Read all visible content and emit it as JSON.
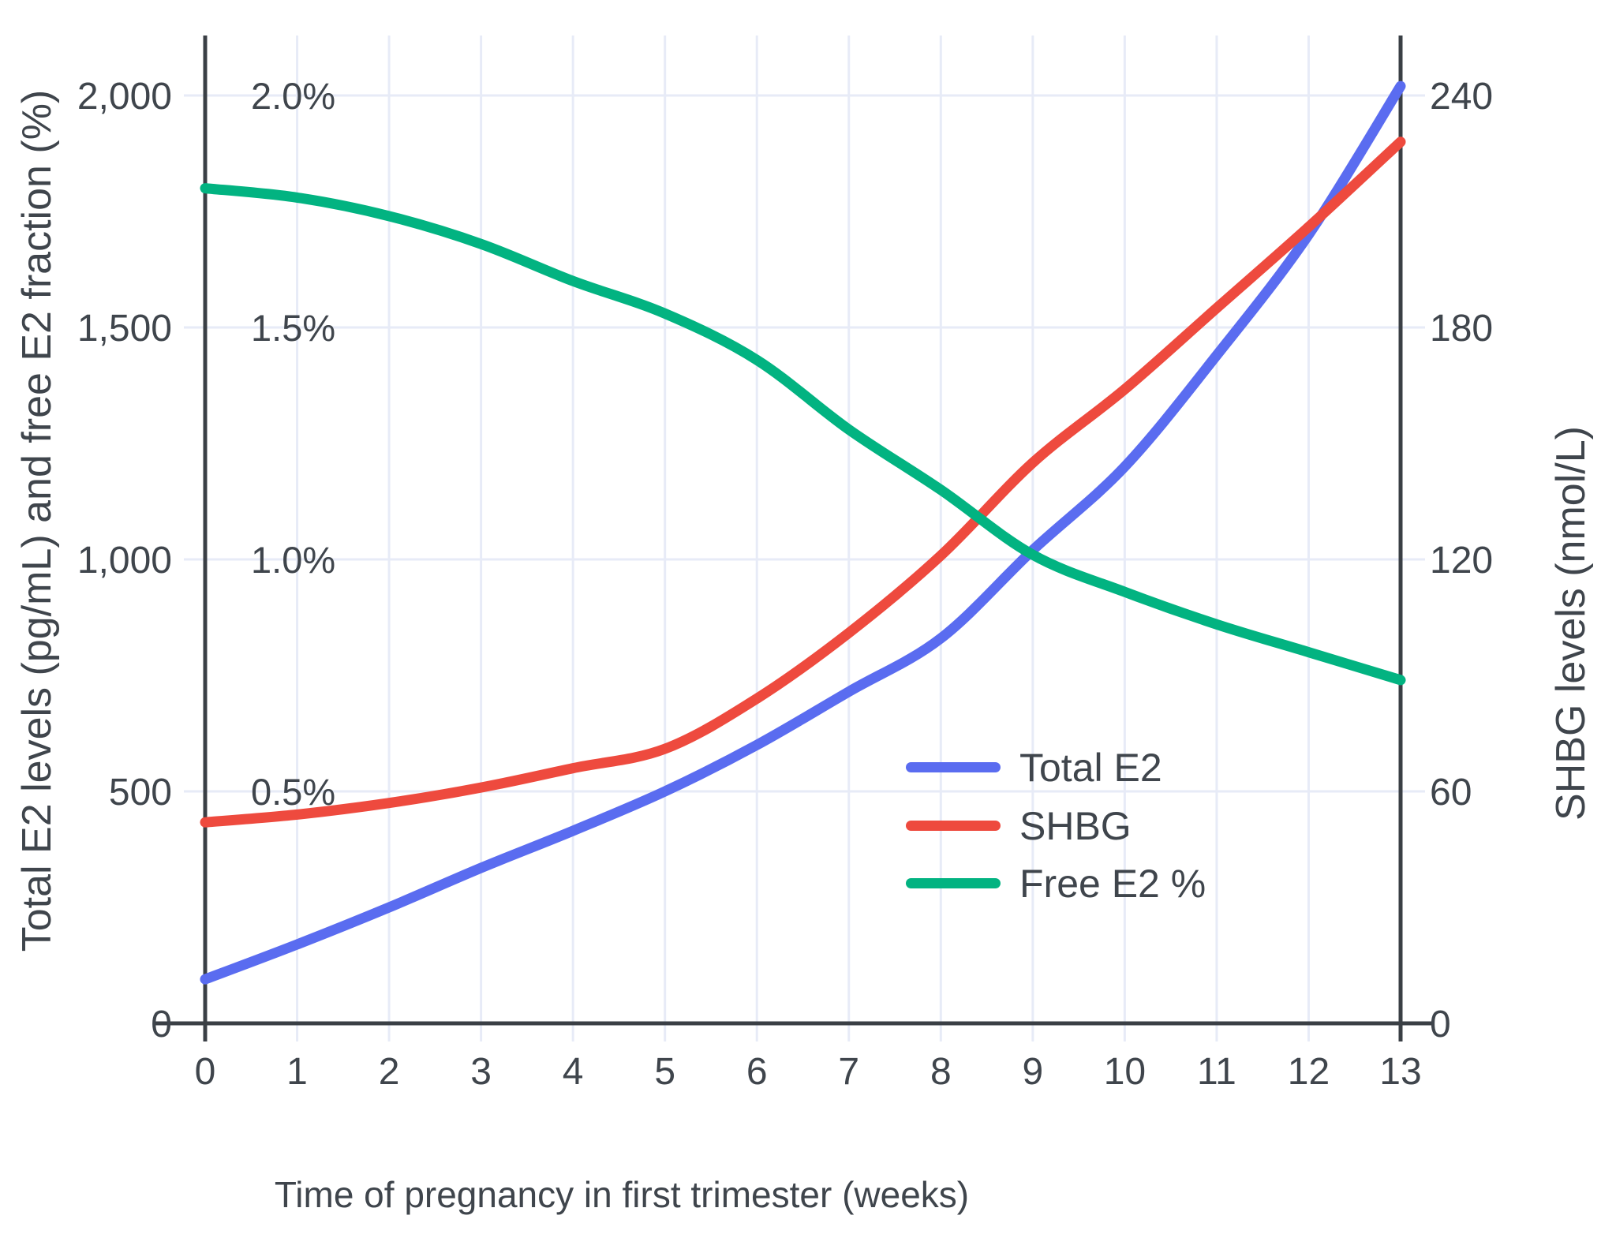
{
  "chart_data": {
    "type": "line",
    "title": "",
    "xlabel": "Time of pregnancy in first trimester (weeks)",
    "ylabel_left": "Total E2 levels (pg/mL) and free E2 fraction (%)",
    "ylabel_right": "SHBG levels (nmol/L)",
    "x": [
      0,
      1,
      2,
      3,
      4,
      5,
      6,
      7,
      8,
      9,
      10,
      11,
      12,
      13
    ],
    "x_ticks": [
      "0",
      "1",
      "2",
      "3",
      "4",
      "5",
      "6",
      "7",
      "8",
      "9",
      "10",
      "11",
      "12",
      "13"
    ],
    "xlim": [
      0,
      13
    ],
    "ylim_left": [
      0,
      2000
    ],
    "ylim_right": [
      0,
      240
    ],
    "grid": true,
    "legend_position": "center-right",
    "y_left_ticks": [
      {
        "value": 0,
        "label": "0"
      },
      {
        "value": 500,
        "label": "500"
      },
      {
        "value": 1000,
        "label": "1,000"
      },
      {
        "value": 1500,
        "label": "1,500"
      },
      {
        "value": 2000,
        "label": "2,000"
      }
    ],
    "y_percent_ticks": [
      {
        "value": 500,
        "label": "0.5%"
      },
      {
        "value": 1000,
        "label": "1.0%"
      },
      {
        "value": 1500,
        "label": "1.5%"
      },
      {
        "value": 2000,
        "label": "2.0%"
      }
    ],
    "y_right_ticks": [
      {
        "value": 0,
        "label": "0"
      },
      {
        "value": 60,
        "label": "60"
      },
      {
        "value": 120,
        "label": "120"
      },
      {
        "value": 180,
        "label": "180"
      },
      {
        "value": 240,
        "label": "240"
      }
    ],
    "series": [
      {
        "name": "Total E2",
        "axis": "left",
        "unit": "pg/mL",
        "color": "#5a6cf0",
        "values": [
          95,
          170,
          250,
          335,
          415,
          500,
          600,
          715,
          830,
          1020,
          1200,
          1440,
          1700,
          2020
        ]
      },
      {
        "name": "SHBG",
        "axis": "right",
        "unit": "nmol/L",
        "color": "#ee4a3e",
        "values": [
          52,
          54,
          57,
          61,
          66,
          71,
          84,
          101,
          121,
          145,
          164,
          185,
          206,
          228
        ]
      },
      {
        "name": "Free E2 %",
        "axis": "left_percent",
        "unit": "%",
        "color": "#02b381",
        "values": [
          1.8,
          1.78,
          1.74,
          1.68,
          1.6,
          1.53,
          1.43,
          1.28,
          1.15,
          1.01,
          0.93,
          0.86,
          0.8,
          0.74
        ]
      }
    ],
    "colors": {
      "grid": "#e7ebf7",
      "axis": "#3a3f45",
      "text": "#3f454c",
      "background": "#ffffff"
    }
  }
}
